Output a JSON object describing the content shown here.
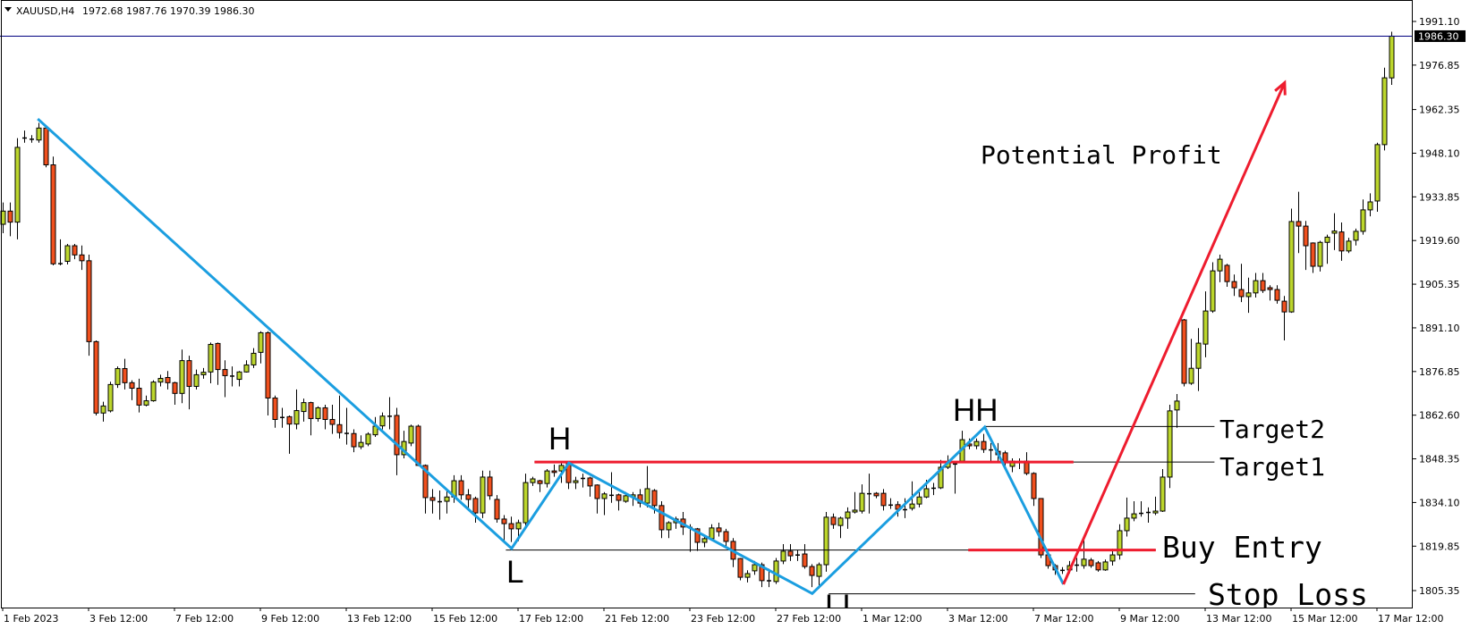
{
  "header": {
    "symbol": "XAUUSD,H4",
    "ohlc_text": "1972.68 1987.76 1970.39 1986.30",
    "menu_icon": "triangle-down-icon"
  },
  "colors": {
    "bull": "#bcd62c",
    "bear": "#f0501e",
    "zigzag": "#1b9ee0",
    "arrow": "#ee1c2e",
    "price_line": "#000080",
    "level": "#000000"
  },
  "chart_data": {
    "type": "candlestick",
    "symbol": "XAUUSD",
    "timeframe": "H4",
    "current_price": "1986.30",
    "current_price_value": 1986.3,
    "ylim": [
      1805.35,
      1991.1
    ],
    "y_tick_labels": [
      "1991.10",
      "1976.85",
      "1962.35",
      "1948.10",
      "1933.85",
      "1919.60",
      "1905.35",
      "1891.10",
      "1876.85",
      "1862.60",
      "1848.35",
      "1834.10",
      "1819.85",
      "1805.35"
    ],
    "x_tick_labels": [
      "1 Feb 2023",
      "3 Feb 12:00",
      "7 Feb 12:00",
      "9 Feb 12:00",
      "13 Feb 12:00",
      "15 Feb 12:00",
      "17 Feb 12:00",
      "21 Feb 12:00",
      "23 Feb 12:00",
      "27 Feb 12:00",
      "1 Mar 12:00",
      "3 Mar 12:00",
      "7 Mar 12:00",
      "9 Mar 12:00",
      "13 Mar 12:00",
      "15 Mar 12:00",
      "17 Mar 12:00"
    ],
    "grid": false,
    "ohlc": [
      [
        1924.9,
        1932,
        1922,
        1929.2
      ],
      [
        1929.2,
        1932,
        1921,
        1925.6
      ],
      [
        1925.6,
        1953,
        1920,
        1950.0
      ],
      [
        1953.1,
        1955.5,
        1951.5,
        1953.2
      ],
      [
        1952.7,
        1954,
        1951.5,
        1952.8
      ],
      [
        1952.4,
        1958,
        1951.5,
        1956.3
      ],
      [
        1956.3,
        1957,
        1943.5,
        1944.3
      ],
      [
        1944.3,
        1947,
        1911.5,
        1912.0
      ],
      [
        1912.2,
        1920,
        1911.5,
        1912.1
      ],
      [
        1912.8,
        1918.5,
        1911.8,
        1917.9
      ],
      [
        1917.9,
        1918.5,
        1913.5,
        1914.9
      ],
      [
        1914.9,
        1918,
        1910,
        1913.0
      ],
      [
        1913.0,
        1915,
        1882,
        1886.6
      ],
      [
        1886.6,
        1887,
        1862.5,
        1863.3
      ],
      [
        1863.3,
        1867,
        1860.5,
        1865.6
      ],
      [
        1864.0,
        1873.5,
        1863.5,
        1872.6
      ],
      [
        1872.6,
        1878.5,
        1871.5,
        1877.8
      ],
      [
        1877.8,
        1881,
        1871,
        1873.2
      ],
      [
        1873.2,
        1874,
        1867.5,
        1871.4
      ],
      [
        1871.4,
        1874.5,
        1863.5,
        1865.9
      ],
      [
        1865.9,
        1869,
        1865.5,
        1867.3
      ],
      [
        1867.3,
        1874,
        1867,
        1873.4
      ],
      [
        1873.4,
        1875.8,
        1872,
        1874.6
      ],
      [
        1874.9,
        1877,
        1871,
        1873.2
      ],
      [
        1873.2,
        1873.5,
        1866,
        1869.7
      ],
      [
        1869.7,
        1884,
        1866.5,
        1880.4
      ],
      [
        1880.4,
        1882,
        1864.5,
        1872.0
      ],
      [
        1872.0,
        1877.5,
        1871,
        1875.8
      ],
      [
        1875.8,
        1878,
        1874.5,
        1876.6
      ],
      [
        1876.7,
        1886.3,
        1873,
        1885.7
      ],
      [
        1886.0,
        1886.3,
        1872.5,
        1877.5
      ],
      [
        1877.5,
        1880.5,
        1868.5,
        1875.5
      ],
      [
        1875.5,
        1878.5,
        1872,
        1875.4
      ],
      [
        1874.3,
        1877,
        1872,
        1876.7
      ],
      [
        1876.7,
        1880.5,
        1876.5,
        1879.0
      ],
      [
        1879.0,
        1884.5,
        1878,
        1882.8
      ],
      [
        1883.1,
        1890,
        1879.5,
        1889.5
      ],
      [
        1889.5,
        1890,
        1862.5,
        1868.2
      ],
      [
        1868.2,
        1869,
        1858.5,
        1861.2
      ],
      [
        1862.0,
        1865,
        1858.5,
        1861.9
      ],
      [
        1862.1,
        1862.5,
        1850,
        1859.7
      ],
      [
        1859.7,
        1871,
        1858,
        1864.1
      ],
      [
        1863.8,
        1868,
        1860.5,
        1866.7
      ],
      [
        1866.7,
        1867,
        1856,
        1861.5
      ],
      [
        1861.5,
        1865.5,
        1860.5,
        1865.0
      ],
      [
        1865.0,
        1866,
        1858,
        1861.2
      ],
      [
        1861.2,
        1866,
        1856.5,
        1859.6
      ],
      [
        1859.5,
        1869,
        1855,
        1856.9
      ],
      [
        1856.8,
        1865,
        1853,
        1856.7
      ],
      [
        1856.6,
        1858,
        1850.5,
        1852.3
      ],
      [
        1852.3,
        1856,
        1851.5,
        1853.7
      ],
      [
        1853.2,
        1857,
        1852.5,
        1856.4
      ],
      [
        1856.2,
        1862,
        1855.5,
        1859.0
      ],
      [
        1859.1,
        1863.5,
        1858,
        1862.3
      ],
      [
        1862.4,
        1868.5,
        1858,
        1862.3
      ],
      [
        1862.5,
        1865,
        1843,
        1849.7
      ],
      [
        1849.7,
        1857.5,
        1848.5,
        1854.0
      ],
      [
        1853.5,
        1859.5,
        1852.5,
        1859.0
      ],
      [
        1859.0,
        1859.5,
        1846,
        1846.2
      ],
      [
        1846.2,
        1846.5,
        1830.5,
        1835.7
      ],
      [
        1835.7,
        1838.5,
        1830.5,
        1834.8
      ],
      [
        1834.5,
        1838,
        1828.5,
        1834.4
      ],
      [
        1834.5,
        1838,
        1830.5,
        1835.9
      ],
      [
        1835.9,
        1843,
        1834,
        1841.2
      ],
      [
        1841.2,
        1843,
        1835,
        1836.6
      ],
      [
        1836.6,
        1838.5,
        1832,
        1835.1
      ],
      [
        1835.4,
        1836,
        1827.5,
        1830.7
      ],
      [
        1830.7,
        1844.5,
        1829,
        1842.4
      ],
      [
        1842.4,
        1844.5,
        1835,
        1836.3
      ],
      [
        1835.1,
        1836.5,
        1827.5,
        1828.7
      ],
      [
        1828.7,
        1830,
        1821.5,
        1827.2
      ],
      [
        1827.2,
        1829.5,
        1821.2,
        1825.5
      ],
      [
        1825.5,
        1828.5,
        1821.5,
        1827.5
      ],
      [
        1827.5,
        1843.5,
        1826,
        1840.6
      ],
      [
        1840.6,
        1842.5,
        1839.5,
        1841.8
      ],
      [
        1841.2,
        1841.5,
        1837.5,
        1840.3
      ],
      [
        1840.3,
        1845,
        1839,
        1844.4
      ],
      [
        1844.4,
        1846.5,
        1842.5,
        1843.9
      ],
      [
        1844.4,
        1847.3,
        1840.5,
        1846.2
      ],
      [
        1846.8,
        1846.9,
        1838.5,
        1840.6
      ],
      [
        1840.6,
        1842.5,
        1838.5,
        1841.2
      ],
      [
        1842.1,
        1843.5,
        1839,
        1842.0
      ],
      [
        1842.1,
        1842.5,
        1836,
        1839.5
      ],
      [
        1839.8,
        1840,
        1830.5,
        1835.4
      ],
      [
        1835.4,
        1837.5,
        1830,
        1836.9
      ],
      [
        1836.6,
        1844,
        1834,
        1836.5
      ],
      [
        1836.6,
        1837,
        1831.5,
        1834.8
      ],
      [
        1834.5,
        1837.5,
        1834,
        1836.3
      ],
      [
        1835.9,
        1837.5,
        1833,
        1836.6
      ],
      [
        1836.6,
        1838.5,
        1832.5,
        1833.9
      ],
      [
        1833.9,
        1846,
        1832.5,
        1838.6
      ],
      [
        1838.0,
        1838.5,
        1830.5,
        1833.1
      ],
      [
        1833.1,
        1834.5,
        1822.5,
        1825.2
      ],
      [
        1825.2,
        1828,
        1822.5,
        1827.5
      ],
      [
        1827.5,
        1829.5,
        1825.5,
        1828.7
      ],
      [
        1828.7,
        1831,
        1823.5,
        1826.1
      ],
      [
        1826.1,
        1827,
        1818,
        1826.0
      ],
      [
        1825.5,
        1825.8,
        1818.3,
        1821.1
      ],
      [
        1821.1,
        1823,
        1819.5,
        1822.3
      ],
      [
        1822.3,
        1827,
        1822,
        1825.8
      ],
      [
        1825.8,
        1827.5,
        1823,
        1824.6
      ],
      [
        1824.6,
        1825.5,
        1819.5,
        1821.4
      ],
      [
        1821.4,
        1822.5,
        1813,
        1815.6
      ],
      [
        1815.8,
        1816,
        1808.7,
        1809.7
      ],
      [
        1809.7,
        1812,
        1808,
        1810.9
      ],
      [
        1811.8,
        1815,
        1810.5,
        1813.8
      ],
      [
        1813.8,
        1814.5,
        1806.5,
        1808.6
      ],
      [
        1808.6,
        1812.5,
        1806.5,
        1808.7
      ],
      [
        1808.3,
        1816,
        1807.5,
        1815.0
      ],
      [
        1815.0,
        1820.5,
        1814,
        1818.2
      ],
      [
        1818.2,
        1820.5,
        1815,
        1816.7
      ],
      [
        1817.0,
        1818.5,
        1815,
        1817.1
      ],
      [
        1817.3,
        1820.5,
        1812.5,
        1813.2
      ],
      [
        1813.2,
        1814,
        1806.5,
        1810.3
      ],
      [
        1810.0,
        1814.5,
        1806,
        1813.8
      ],
      [
        1813.8,
        1831,
        1811.5,
        1829.3
      ],
      [
        1829.3,
        1830.5,
        1825.5,
        1826.9
      ],
      [
        1826.6,
        1829.5,
        1822.5,
        1829.0
      ],
      [
        1829.0,
        1832.5,
        1825.5,
        1831.0
      ],
      [
        1831.0,
        1837.5,
        1830.5,
        1831.6
      ],
      [
        1831.3,
        1840,
        1830.5,
        1837.1
      ],
      [
        1837.1,
        1843.5,
        1830.5,
        1837.0
      ],
      [
        1837.1,
        1837.5,
        1835.5,
        1836.3
      ],
      [
        1837.1,
        1838.5,
        1831.5,
        1833.1
      ],
      [
        1833.4,
        1835.5,
        1832,
        1833.3
      ],
      [
        1833.4,
        1834.5,
        1829.5,
        1831.9
      ],
      [
        1831.9,
        1835.5,
        1829,
        1831.8
      ],
      [
        1832.2,
        1841,
        1831.5,
        1833.6
      ],
      [
        1833.6,
        1837.5,
        1832.5,
        1835.9
      ],
      [
        1835.9,
        1841.5,
        1835.5,
        1838.6
      ],
      [
        1838.9,
        1840.5,
        1836.5,
        1838.8
      ],
      [
        1838.9,
        1848,
        1838.5,
        1845.6
      ],
      [
        1845.6,
        1849.5,
        1845,
        1847.3
      ],
      [
        1846.8,
        1847.2,
        1837,
        1846.7
      ],
      [
        1847.6,
        1857.5,
        1847,
        1854.6
      ],
      [
        1853.2,
        1855,
        1851.5,
        1852.6
      ],
      [
        1852.6,
        1855,
        1851.5,
        1854.0
      ],
      [
        1854.0,
        1856.5,
        1850.3,
        1851.4
      ],
      [
        1851.4,
        1853.5,
        1847,
        1851.3
      ],
      [
        1850.8,
        1853.5,
        1847.5,
        1849.7
      ],
      [
        1850.3,
        1851,
        1846,
        1847.3
      ],
      [
        1845.9,
        1848.5,
        1844,
        1847.6
      ],
      [
        1847.6,
        1848.5,
        1845,
        1847.5
      ],
      [
        1847.6,
        1850.5,
        1843,
        1843.6
      ],
      [
        1843.6,
        1844,
        1833,
        1835.4
      ],
      [
        1835.4,
        1835.5,
        1816,
        1817.0
      ],
      [
        1817.0,
        1817.3,
        1812.5,
        1813.5
      ],
      [
        1813.5,
        1814,
        1810.5,
        1812.1
      ],
      [
        1812.1,
        1813,
        1810.8,
        1812.0
      ],
      [
        1812.1,
        1815,
        1811,
        1813.5
      ],
      [
        1813.8,
        1816,
        1811.5,
        1813.7
      ],
      [
        1813.5,
        1822.5,
        1812.5,
        1815.6
      ],
      [
        1815.3,
        1816,
        1812.8,
        1813.5
      ],
      [
        1814.4,
        1815,
        1811.5,
        1812.1
      ],
      [
        1812.1,
        1815.5,
        1811.8,
        1814.7
      ],
      [
        1815.0,
        1819,
        1813.5,
        1817.0
      ],
      [
        1817.0,
        1827,
        1815.5,
        1824.9
      ],
      [
        1824.9,
        1835.7,
        1823,
        1829.0
      ],
      [
        1829.0,
        1834.5,
        1828,
        1830.4
      ],
      [
        1830.7,
        1834.5,
        1829.5,
        1830.6
      ],
      [
        1831.0,
        1832.5,
        1827.5,
        1830.9
      ],
      [
        1830.7,
        1836,
        1830,
        1831.3
      ],
      [
        1831.3,
        1845,
        1831,
        1842.4
      ],
      [
        1842.4,
        1866,
        1838.8,
        1864.0
      ],
      [
        1864.3,
        1869.5,
        1858.5,
        1867.2
      ],
      [
        1893.7,
        1894,
        1872,
        1873.0
      ],
      [
        1873.0,
        1887.5,
        1872.5,
        1877.9
      ],
      [
        1877.9,
        1891,
        1870.5,
        1886.1
      ],
      [
        1885.8,
        1903,
        1881.5,
        1896.6
      ],
      [
        1896.6,
        1912.5,
        1896,
        1909.7
      ],
      [
        1909.7,
        1915,
        1906,
        1913.5
      ],
      [
        1911.5,
        1912,
        1904.5,
        1906.2
      ],
      [
        1906.2,
        1908.5,
        1901.5,
        1904.2
      ],
      [
        1903.6,
        1912,
        1899.5,
        1901.3
      ],
      [
        1901.3,
        1907.5,
        1896,
        1902.5
      ],
      [
        1902.5,
        1909,
        1901,
        1906.5
      ],
      [
        1906.5,
        1909,
        1902.5,
        1903.3
      ],
      [
        1904.2,
        1905,
        1900,
        1903.6
      ],
      [
        1903.6,
        1905,
        1899,
        1900.1
      ],
      [
        1899.8,
        1901.5,
        1887,
        1896.3
      ],
      [
        1896.3,
        1930,
        1896,
        1925.8
      ],
      [
        1925.8,
        1935.5,
        1915.5,
        1924.3
      ],
      [
        1924.3,
        1926,
        1910,
        1917.9
      ],
      [
        1918.8,
        1919,
        1909,
        1911.2
      ],
      [
        1911.2,
        1919.5,
        1909.5,
        1919.0
      ],
      [
        1919.0,
        1921.5,
        1912,
        1920.7
      ],
      [
        1922.0,
        1928.5,
        1916.5,
        1922.7
      ],
      [
        1922.4,
        1925.5,
        1913,
        1916.2
      ],
      [
        1916.2,
        1920.5,
        1915.5,
        1919.4
      ],
      [
        1919.7,
        1923.5,
        1918,
        1922.6
      ],
      [
        1922.6,
        1933,
        1921.5,
        1929.6
      ],
      [
        1929.6,
        1935,
        1927.5,
        1932.2
      ],
      [
        1932.5,
        1951.5,
        1929,
        1950.9
      ],
      [
        1950.9,
        1976,
        1949,
        1972.7
      ],
      [
        1972.68,
        1987.76,
        1970.39,
        1986.3
      ]
    ],
    "annotations": {
      "zigzag": [
        [
          4.9,
          1959.3
        ],
        [
          71.1,
          1819.1
        ],
        [
          79.1,
          1847.0
        ],
        [
          113.1,
          1804.4
        ],
        [
          137.2,
          1858.7
        ],
        [
          148.2,
          1807.4
        ]
      ],
      "arrow": {
        "from": [
          148.2,
          1807.4
        ],
        "to": [
          179.1,
          1971.1
        ]
      },
      "labels": {
        "low": "L",
        "high": "H",
        "higher_high": "HH",
        "lower_low": "LL",
        "profit": "Potential Profit"
      },
      "levels": [
        {
          "name": "target2",
          "label": "Target2",
          "price": 1858.9,
          "from_bar": 137.2,
          "to_bar": 169.3,
          "color": "#000000"
        },
        {
          "name": "target1",
          "label": "Target1",
          "price": 1847.3,
          "from_bar": 74.3,
          "to_bar": 169.3,
          "color": "#000000"
        },
        {
          "name": "buy-entry",
          "label": "Buy Entry",
          "price": 1818.6,
          "from_bar": 70.3,
          "to_bar": 161.1,
          "color": "#000000"
        },
        {
          "name": "stop-loss",
          "label": "Stop Loss",
          "price": 1804.3,
          "from_bar": 115.4,
          "to_bar": 166.6,
          "color": "#000000"
        }
      ],
      "red_segments": [
        {
          "name": "h-level",
          "price": 1847.3,
          "from_bar": 74.3,
          "to_bar": 149.6
        },
        {
          "name": "buy-entry-level",
          "price": 1818.6,
          "from_bar": 134.9,
          "to_bar": 161.1
        }
      ]
    }
  }
}
